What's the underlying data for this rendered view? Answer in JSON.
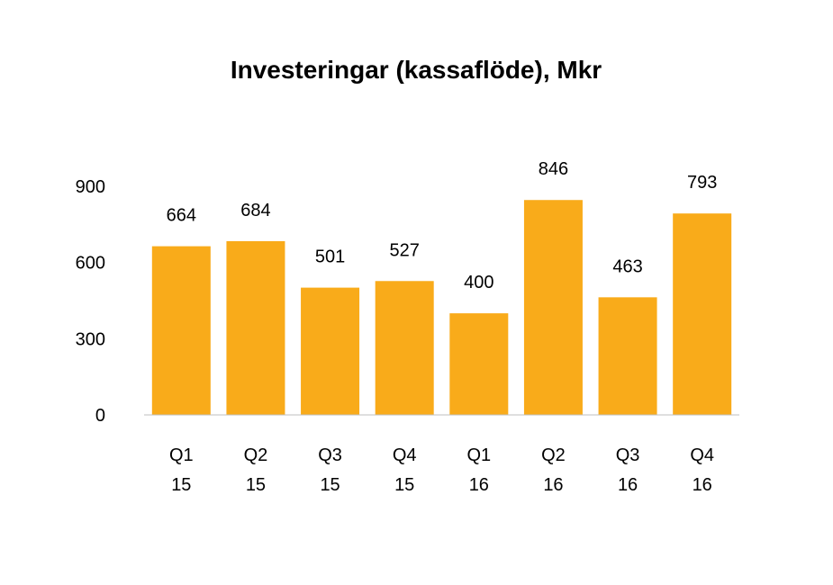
{
  "chart_data": {
    "type": "bar",
    "title": "Investeringar (kassaflöde), Mkr",
    "xlabel": "",
    "ylabel": "",
    "categories": [
      [
        "Q1",
        "15"
      ],
      [
        "Q2",
        "15"
      ],
      [
        "Q3",
        "15"
      ],
      [
        "Q4",
        "15"
      ],
      [
        "Q1",
        "16"
      ],
      [
        "Q2",
        "16"
      ],
      [
        "Q3",
        "16"
      ],
      [
        "Q4",
        "16"
      ]
    ],
    "values": [
      664,
      684,
      501,
      527,
      400,
      846,
      463,
      793
    ],
    "data_labels": [
      "664",
      "684",
      "501",
      "527",
      "400",
      "846",
      "463",
      "793"
    ],
    "ylim": [
      0,
      900
    ],
    "yticks": [
      0,
      300,
      600,
      900
    ],
    "ytick_labels": [
      "0",
      "300",
      "600",
      "900"
    ],
    "grid": false,
    "legend": "none",
    "bar_color": "#F9AB1A",
    "axis_color": "#BFBFBF"
  }
}
